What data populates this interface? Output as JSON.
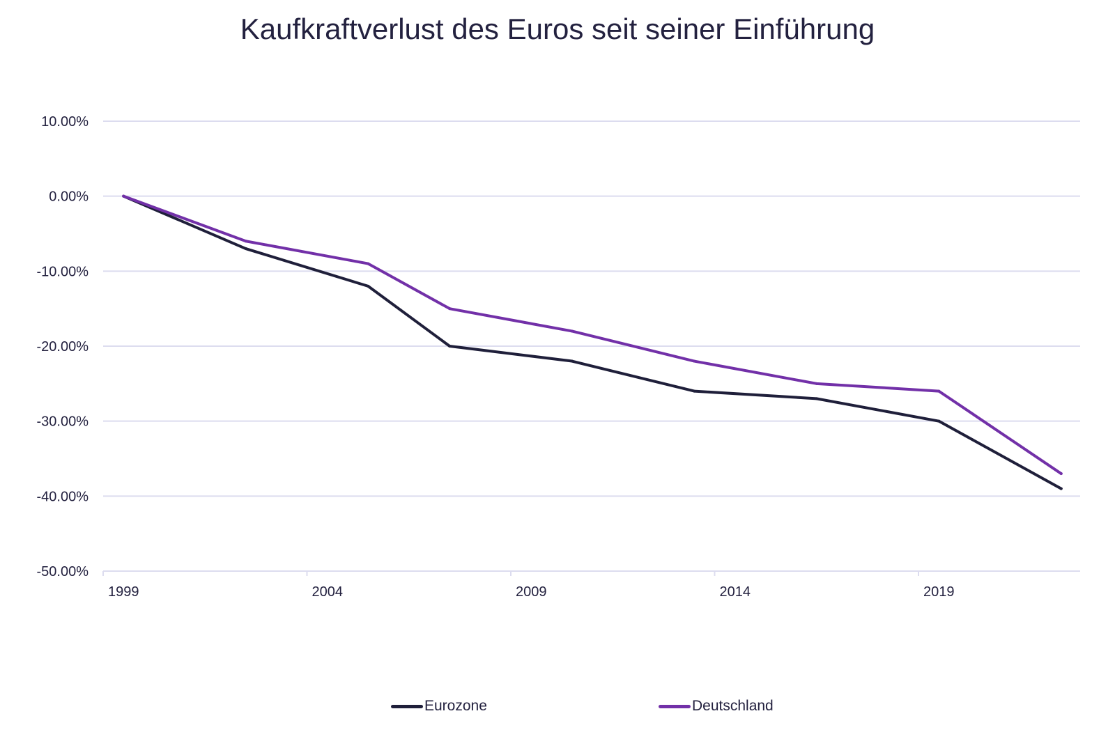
{
  "chart_data": {
    "type": "line",
    "title": "Kaufkraftverlust des Euros seit seiner Einführung",
    "x": [
      1999,
      2002,
      2005,
      2007,
      2010,
      2013,
      2016,
      2019,
      2022
    ],
    "x_tick_labels": [
      "1999",
      "2004",
      "2009",
      "2014",
      "2019"
    ],
    "x_ticks": [
      1999,
      2004,
      2009,
      2014,
      2019
    ],
    "y_tick_labels": [
      "10.00%",
      "0.00%",
      "-10.00%",
      "-20.00%",
      "-30.00%",
      "-40.00%",
      "-50.00%"
    ],
    "y_ticks": [
      10,
      0,
      -10,
      -20,
      -30,
      -40,
      -50
    ],
    "ylim": [
      -50,
      10
    ],
    "grid": true,
    "legend_position": "bottom",
    "series": [
      {
        "name": "Eurozone",
        "color": "#1f1f3a",
        "values": [
          0,
          -7,
          -12,
          -20,
          -22,
          -26,
          -27,
          -30,
          -39
        ]
      },
      {
        "name": "Deutschland",
        "color": "#7230a8",
        "values": [
          0,
          -6,
          -9,
          -15,
          -18,
          -22,
          -25,
          -26,
          -37
        ]
      }
    ]
  }
}
